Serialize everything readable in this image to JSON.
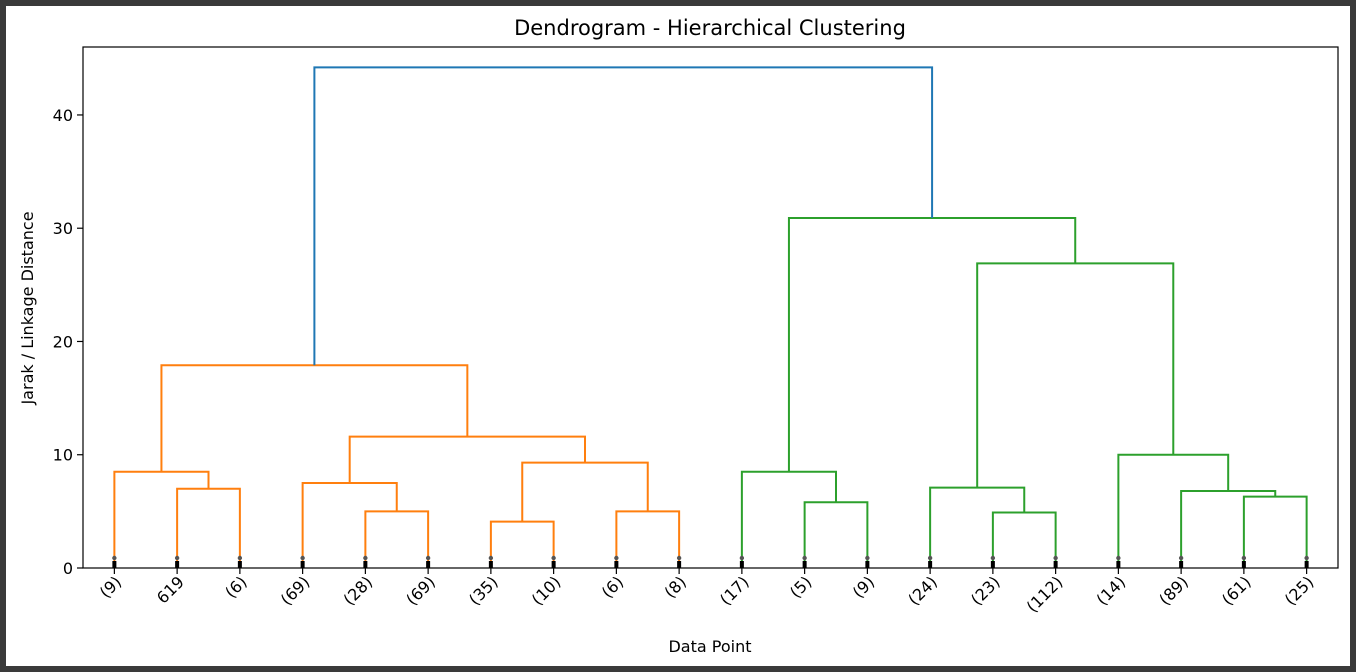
{
  "chart_data": {
    "type": "dendrogram",
    "title": "Dendrogram - Hierarchical Clustering",
    "xlabel": "Data Point",
    "ylabel": "Jarak / Linkage Distance",
    "ylim": [
      0,
      46
    ],
    "yticks": [
      0,
      10,
      20,
      30,
      40
    ],
    "leaves": [
      "(9)",
      "619",
      "(6)",
      "(69)",
      "(28)",
      "(69)",
      "(35)",
      "(10)",
      "(6)",
      "(8)",
      "(17)",
      "(5)",
      "(9)",
      "(24)",
      "(23)",
      "(112)",
      "(14)",
      "(89)",
      "(61)",
      "(25)"
    ],
    "colors": {
      "root": "#1f77b4",
      "cluster1": "#ff7f0e",
      "cluster2": "#2ca02c"
    },
    "links": [
      {
        "left": "L1",
        "right": "L2",
        "height": 7.0,
        "color": "cluster1"
      },
      {
        "left": "L0",
        "right": "N0",
        "height": 8.5,
        "color": "cluster1"
      },
      {
        "left": "L4",
        "right": "L5",
        "height": 5.0,
        "color": "cluster1"
      },
      {
        "left": "L3",
        "right": "N2",
        "height": 7.5,
        "color": "cluster1"
      },
      {
        "left": "L6",
        "right": "L7",
        "height": 4.1,
        "color": "cluster1"
      },
      {
        "left": "L8",
        "right": "L9",
        "height": 5.0,
        "color": "cluster1"
      },
      {
        "left": "N4",
        "right": "N5",
        "height": 9.3,
        "color": "cluster1"
      },
      {
        "left": "N3",
        "right": "N6",
        "height": 11.6,
        "color": "cluster1"
      },
      {
        "left": "N1",
        "right": "N7",
        "height": 17.9,
        "color": "cluster1"
      },
      {
        "left": "L11",
        "right": "L12",
        "height": 5.8,
        "color": "cluster2"
      },
      {
        "left": "L10",
        "right": "N9",
        "height": 8.5,
        "color": "cluster2"
      },
      {
        "left": "L14",
        "right": "L15",
        "height": 4.9,
        "color": "cluster2"
      },
      {
        "left": "L13",
        "right": "N11",
        "height": 7.1,
        "color": "cluster2"
      },
      {
        "left": "L18",
        "right": "L19",
        "height": 6.3,
        "color": "cluster2"
      },
      {
        "left": "L17",
        "right": "N13",
        "height": 6.8,
        "color": "cluster2"
      },
      {
        "left": "L16",
        "right": "N14",
        "height": 10.0,
        "color": "cluster2"
      },
      {
        "left": "N12",
        "right": "N15",
        "height": 26.9,
        "color": "cluster2"
      },
      {
        "left": "N10",
        "right": "N16",
        "height": 30.9,
        "color": "cluster2"
      },
      {
        "left": "N8",
        "right": "N17",
        "height": 44.2,
        "color": "root"
      }
    ]
  }
}
